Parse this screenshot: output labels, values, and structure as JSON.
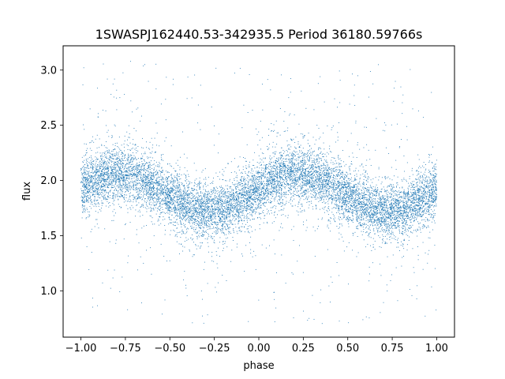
{
  "chart_data": {
    "type": "scatter",
    "title": "1SWASPJ162440.53-342935.5 Period 36180.59766s",
    "xlabel": "phase",
    "ylabel": "flux",
    "xlim": [
      -1.1,
      1.1
    ],
    "ylim": [
      0.58,
      3.22
    ],
    "x_ticks": [
      -1.0,
      -0.75,
      -0.5,
      -0.25,
      0.0,
      0.25,
      0.5,
      0.75,
      1.0
    ],
    "x_tick_labels": [
      "−1.00",
      "−0.75",
      "−0.50",
      "−0.25",
      "0.00",
      "0.25",
      "0.50",
      "0.75",
      "1.00"
    ],
    "y_ticks": [
      1.0,
      1.5,
      2.0,
      2.5,
      3.0
    ],
    "y_tick_labels": [
      "1.0",
      "1.5",
      "2.0",
      "2.5",
      "3.0"
    ],
    "grid": false,
    "point_color": "#1f77b4",
    "series": [
      {
        "name": "",
        "x_range": [
          -1.0,
          1.0
        ],
        "mean_flux": 1.89,
        "amplitude": 0.17,
        "peak_phase": -0.78,
        "trough_phase": -0.22,
        "scatter_sigma": 0.12,
        "outlier_range": [
          0.7,
          3.1
        ],
        "approx_point_count": 11000
      }
    ]
  }
}
